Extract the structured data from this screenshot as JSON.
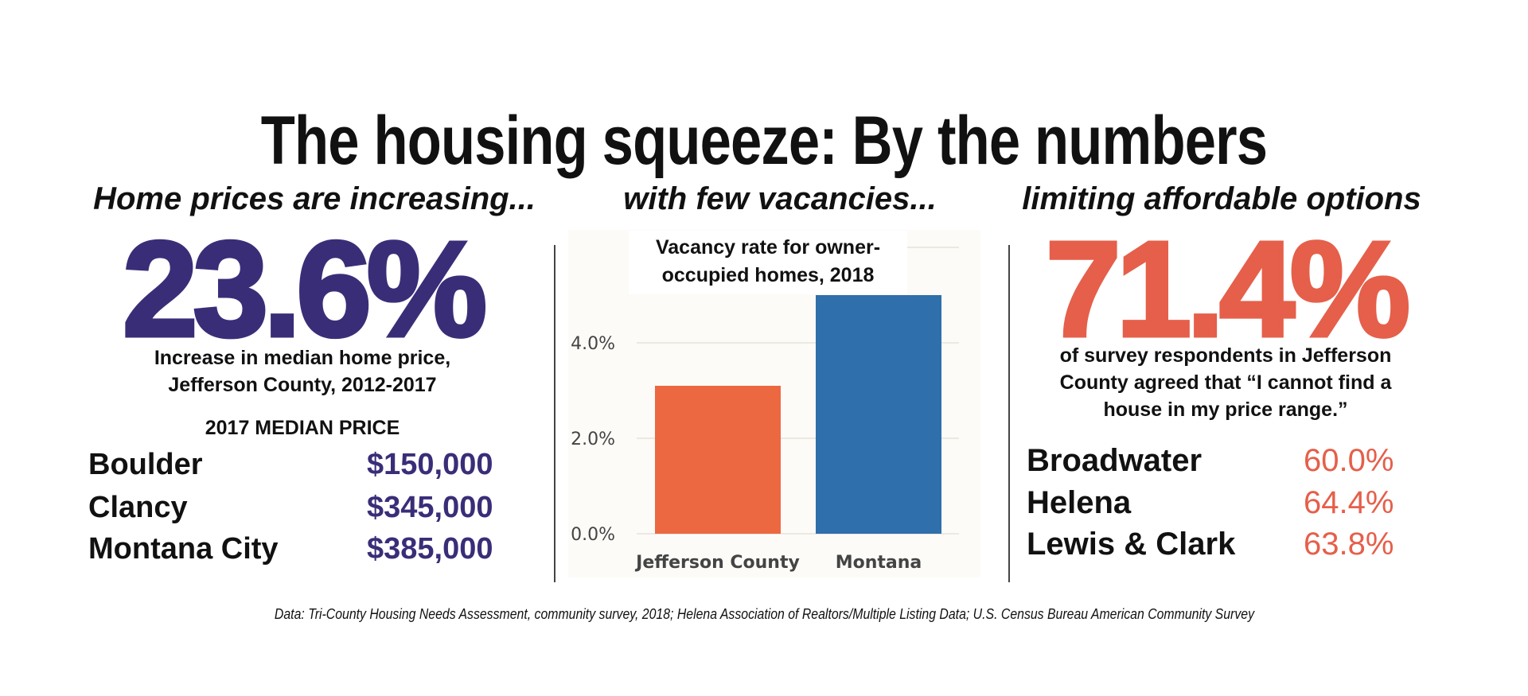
{
  "title": "The housing squeeze: By the numbers",
  "left": {
    "subhead": "Home prices are increasing...",
    "big_stat": "23.6%",
    "caption_line1": "Increase in median home price,",
    "caption_line2": "Jefferson County, 2012-2017",
    "table_header": "2017 MEDIAN PRICE",
    "rows": [
      {
        "name": "Boulder",
        "value": "$150,000"
      },
      {
        "name": "Clancy",
        "value": "$345,000"
      },
      {
        "name": "Montana City",
        "value": "$385,000"
      }
    ],
    "color": "#3a2d78"
  },
  "middle": {
    "subhead": "with few vacancies..."
  },
  "right": {
    "subhead": "limiting affordable options",
    "big_stat": "71.4%",
    "caption_line1": "of survey respondents in Jefferson",
    "caption_line2": "County agreed that “I cannot find a",
    "caption_line3": "house in my price range.”",
    "rows": [
      {
        "name": "Broadwater",
        "value": "60.0%"
      },
      {
        "name": "Helena",
        "value": "64.4%"
      },
      {
        "name": "Lewis & Clark",
        "value": "63.8%"
      }
    ],
    "color": "#e55f4a"
  },
  "chart_data": {
    "type": "bar",
    "title_line1": "Vacancy rate for owner-",
    "title_line2": "occupied homes, 2018",
    "categories": [
      "Jefferson County",
      "Montana"
    ],
    "values": [
      3.1,
      5.0
    ],
    "colors": [
      "#ec6841",
      "#2f6fab"
    ],
    "ylim": [
      0,
      6
    ],
    "yticks": [
      {
        "value": 0,
        "label": "0.0%"
      },
      {
        "value": 2,
        "label": "2.0%"
      },
      {
        "value": 4,
        "label": "4.0%"
      }
    ],
    "gridlines_at": [
      0,
      2,
      4,
      6
    ],
    "grid": true,
    "xlabel": "",
    "ylabel": ""
  },
  "footer": "Data: Tri-County Housing Needs Assessment, community survey, 2018; Helena Association of Realtors/Multiple Listing Data; U.S. Census Bureau American Community Survey"
}
